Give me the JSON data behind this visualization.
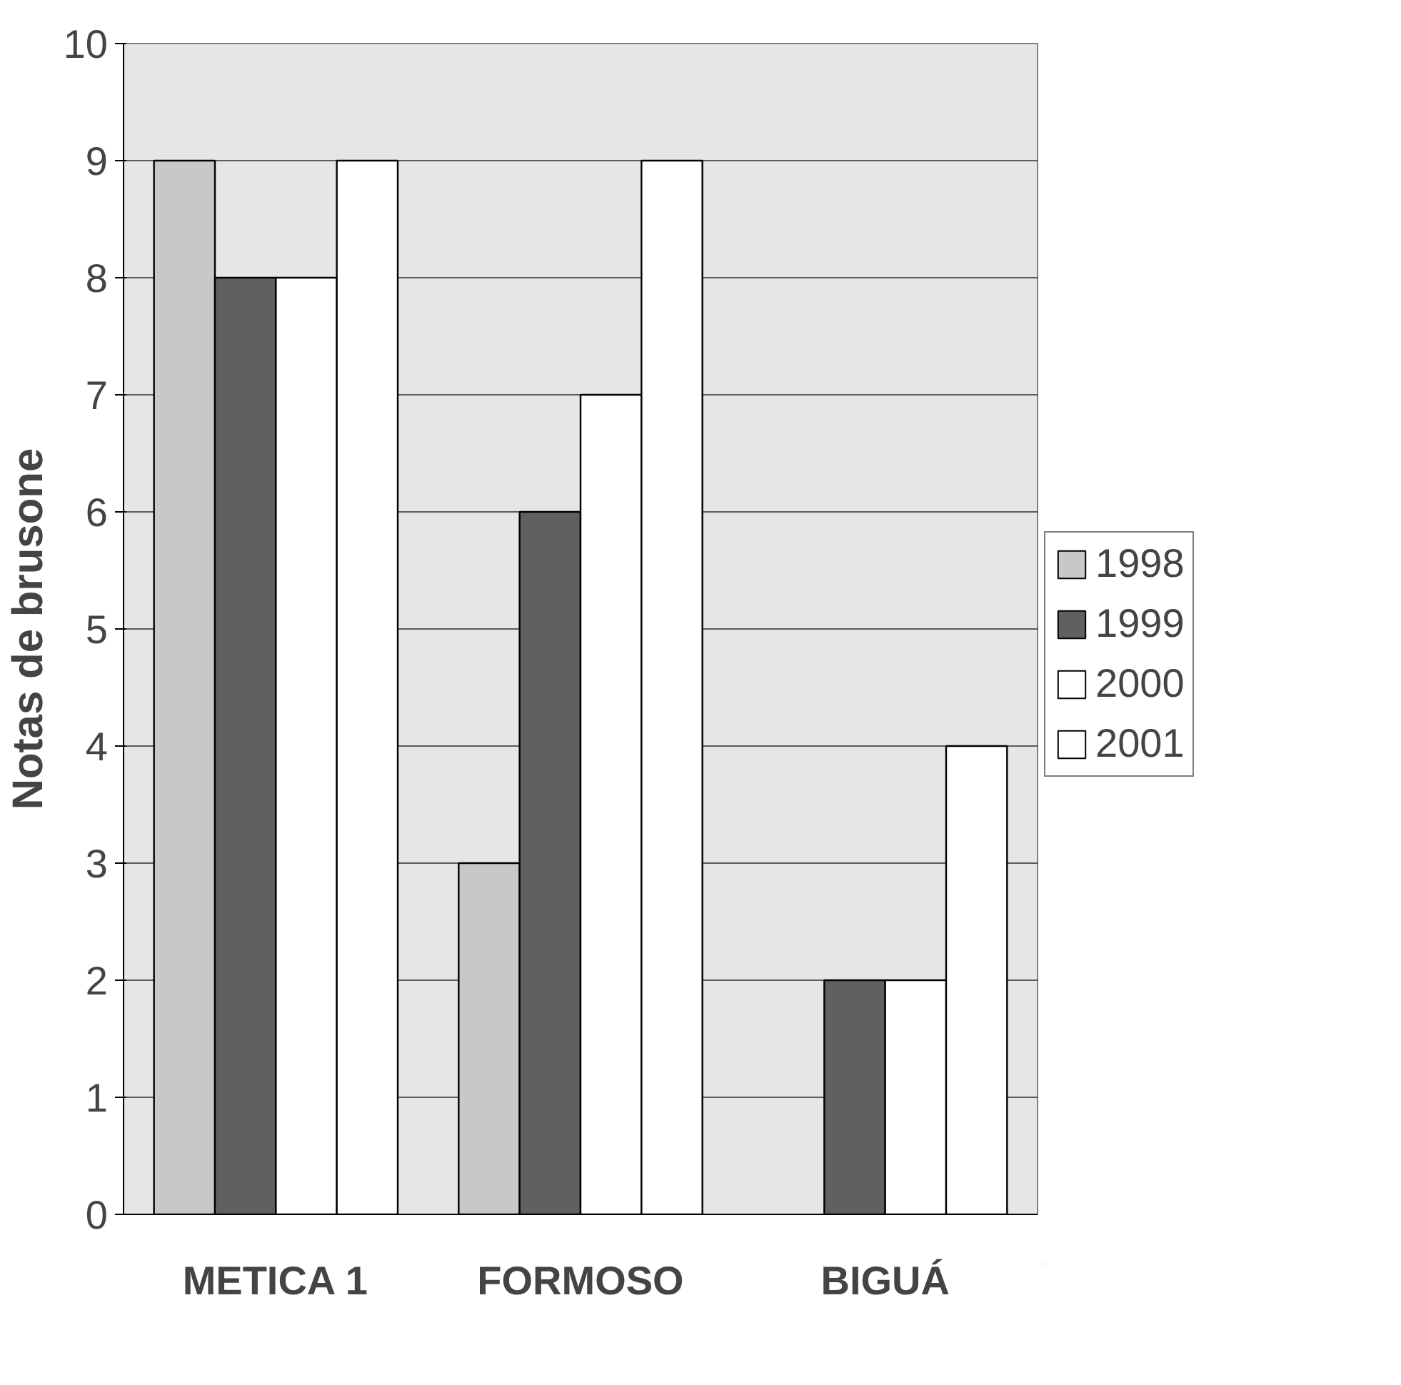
{
  "chart_data": {
    "type": "bar",
    "ylabel": "Notas de brusone",
    "categories": [
      "METICA 1",
      "FORMOSO",
      "BIGUÁ"
    ],
    "series": [
      {
        "name": "1998",
        "color": "#c8c8c8",
        "values": [
          9,
          3,
          null
        ]
      },
      {
        "name": "1999",
        "color": "#606060",
        "values": [
          8,
          6,
          2
        ]
      },
      {
        "name": "2000",
        "color": "#ffffff",
        "values": [
          8,
          7,
          2
        ]
      },
      {
        "name": "2001",
        "color": "#ffffff",
        "values": [
          9,
          9,
          4
        ]
      }
    ],
    "ylim": [
      0,
      10
    ],
    "yticks": [
      0,
      1,
      2,
      3,
      4,
      5,
      6,
      7,
      8,
      9,
      10
    ],
    "grid": "y",
    "legend": "right"
  }
}
